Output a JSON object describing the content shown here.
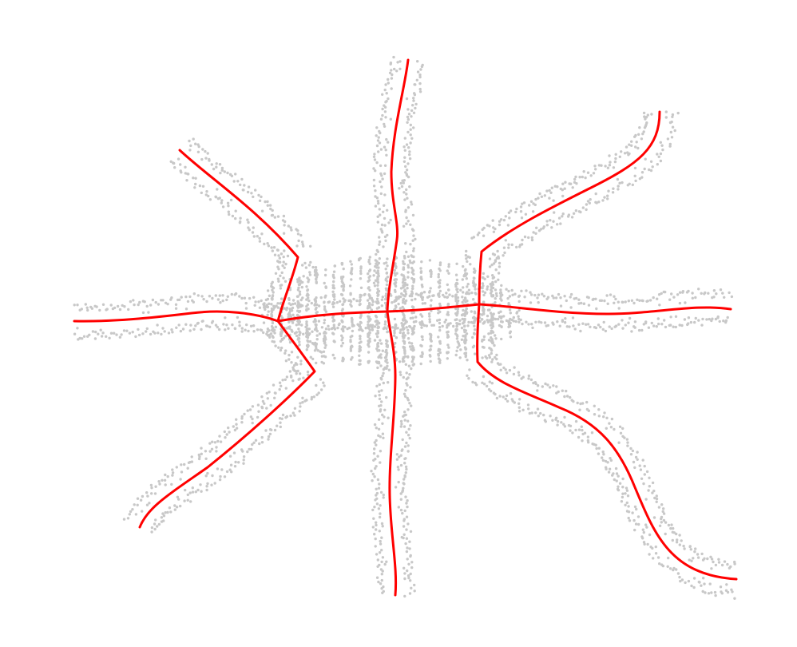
{
  "colors": {
    "background": "#ffffff",
    "point_cloud": "#c8c8c8",
    "skeleton": "#ff0000"
  },
  "icons": {
    "point": "point-dot",
    "skeleton": "skeleton-line"
  }
}
